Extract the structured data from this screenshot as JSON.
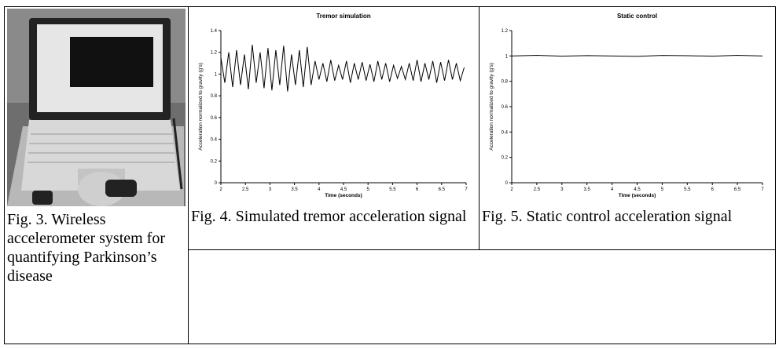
{
  "captions": {
    "fig3": "Fig. 3. Wireless accelerometer system for quantifying Parkinson’s disease",
    "fig4": "Fig. 4. Simulated tremor acceleration signal",
    "fig5": "Fig. 5. Static control acceleration signal"
  },
  "chart_data": [
    {
      "type": "line",
      "title": "Tremor simulation",
      "x_label": "Time (seconds)",
      "y_label": "Acceleration normalized to gravity (g's)",
      "color": "#000000",
      "x": [
        2,
        2.08,
        2.16,
        2.24,
        2.32,
        2.4,
        2.48,
        2.56,
        2.64,
        2.72,
        2.8,
        2.88,
        2.96,
        3.04,
        3.12,
        3.2,
        3.28,
        3.36,
        3.44,
        3.52,
        3.6,
        3.68,
        3.76,
        3.84,
        3.92,
        4,
        4.08,
        4.16,
        4.24,
        4.32,
        4.4,
        4.48,
        4.56,
        4.64,
        4.72,
        4.8,
        4.88,
        4.96,
        5.04,
        5.12,
        5.2,
        5.28,
        5.36,
        5.44,
        5.52,
        5.6,
        5.68,
        5.76,
        5.84,
        5.92,
        6,
        6.08,
        6.16,
        6.24,
        6.32,
        6.4,
        6.48,
        6.56,
        6.64,
        6.72,
        6.8,
        6.88,
        6.96
      ],
      "values": [
        1.15,
        0.92,
        1.2,
        0.88,
        1.22,
        0.9,
        1.18,
        0.86,
        1.27,
        0.92,
        1.2,
        0.87,
        1.24,
        0.85,
        1.22,
        0.9,
        1.26,
        0.84,
        1.18,
        0.9,
        1.22,
        0.88,
        1.25,
        0.9,
        1.12,
        0.95,
        1.1,
        0.93,
        1.13,
        0.94,
        1.08,
        0.95,
        1.12,
        0.92,
        1.1,
        0.95,
        1.11,
        0.94,
        1.09,
        0.93,
        1.12,
        0.95,
        1.1,
        0.93,
        1.08,
        0.96,
        1.07,
        0.95,
        1.1,
        0.94,
        1.13,
        0.93,
        1.1,
        0.95,
        1.12,
        0.92,
        1.11,
        0.94,
        1.13,
        0.95,
        1.1,
        0.94,
        1.06
      ],
      "xlim": [
        2,
        7
      ],
      "ylim": [
        0,
        1.4
      ],
      "xticks": [
        2,
        2.5,
        3,
        3.5,
        4,
        4.5,
        5,
        5.5,
        6,
        6.5,
        7
      ],
      "yticks": [
        0,
        0.2,
        0.4,
        0.6,
        0.8,
        1,
        1.2,
        1.4
      ]
    },
    {
      "type": "line",
      "title": "Static control",
      "x_label": "Time (seconds)",
      "y_label": "Acceleration normalized to gravity (g's)",
      "color": "#000000",
      "x": [
        2,
        2.5,
        3,
        3.5,
        4,
        4.5,
        5,
        5.5,
        6,
        6.5,
        7
      ],
      "values": [
        1,
        1.005,
        0.998,
        1.003,
        1,
        0.997,
        1.004,
        1.002,
        0.998,
        1.005,
        1
      ],
      "xlim": [
        2,
        7
      ],
      "ylim": [
        0,
        1.2
      ],
      "xticks": [
        2,
        2.5,
        3,
        3.5,
        4,
        4.5,
        5,
        5.5,
        6,
        6.5,
        7
      ],
      "yticks": [
        0,
        0.2,
        0.4,
        0.6,
        0.8,
        1,
        1.2
      ]
    }
  ]
}
